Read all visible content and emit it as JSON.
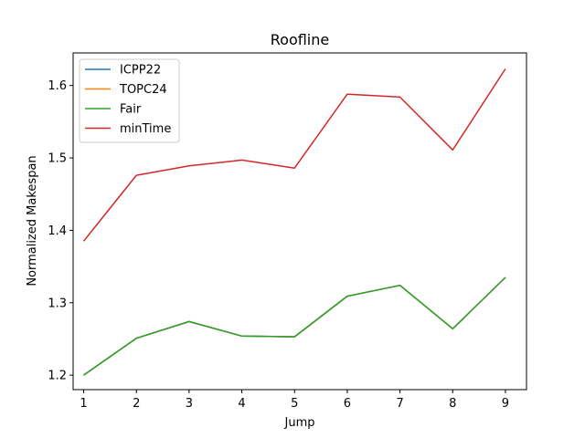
{
  "chart_data": {
    "type": "line",
    "title": "Roofline",
    "xlabel": "Jump",
    "ylabel": "Normalized Makespan",
    "x": [
      1,
      2,
      3,
      4,
      5,
      6,
      7,
      8,
      9
    ],
    "xlim": [
      0.8,
      9.4
    ],
    "ylim": [
      1.18,
      1.645
    ],
    "xticks": [
      1,
      2,
      3,
      4,
      5,
      6,
      7,
      8,
      9
    ],
    "yticks": [
      1.2,
      1.3,
      1.4,
      1.5,
      1.6
    ],
    "ytick_labels": [
      "1.2",
      "1.3",
      "1.4",
      "1.5",
      "1.6"
    ],
    "grid": false,
    "legend_position": "upper-left",
    "series": [
      {
        "name": "ICPP22",
        "color": "#1f77b4",
        "values": [
          1.2,
          1.251,
          1.274,
          1.254,
          1.253,
          1.309,
          1.324,
          1.264,
          1.335
        ]
      },
      {
        "name": "TOPC24",
        "color": "#ff7f0e",
        "values": [
          1.2,
          1.251,
          1.274,
          1.254,
          1.253,
          1.309,
          1.324,
          1.264,
          1.335
        ]
      },
      {
        "name": "Fair",
        "color": "#2ca02c",
        "values": [
          1.2,
          1.251,
          1.274,
          1.254,
          1.253,
          1.309,
          1.324,
          1.264,
          1.335
        ]
      },
      {
        "name": "minTime",
        "color": "#d62728",
        "values": [
          1.385,
          1.476,
          1.489,
          1.497,
          1.486,
          1.588,
          1.584,
          1.511,
          1.623
        ]
      }
    ]
  }
}
